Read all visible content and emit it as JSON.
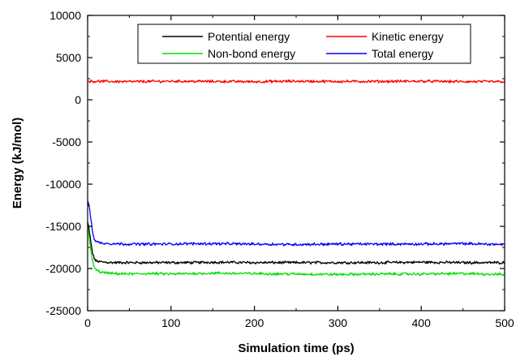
{
  "chart_data": {
    "type": "line",
    "title": "",
    "xlabel": "Simulation time (ps)",
    "ylabel": "Energy (kJ/mol)",
    "xlim": [
      0,
      500
    ],
    "ylim": [
      -25000,
      10000
    ],
    "x_ticks": [
      0,
      100,
      200,
      300,
      400,
      500
    ],
    "y_ticks": [
      10000,
      5000,
      0,
      -5000,
      -10000,
      -15000,
      -20000,
      -25000
    ],
    "grid": false,
    "legend_position": "top-right",
    "series": [
      {
        "name": "Potential energy",
        "color": "#000000",
        "x": [
          0,
          2,
          4,
          6,
          8,
          10,
          15,
          20,
          30,
          50,
          75,
          100,
          125,
          150,
          200,
          250,
          300,
          350,
          400,
          450,
          500
        ],
        "y": [
          -14500,
          -15500,
          -17000,
          -18200,
          -18800,
          -19100,
          -19200,
          -19250,
          -19300,
          -19300,
          -19300,
          -19300,
          -19300,
          -19250,
          -19300,
          -19300,
          -19300,
          -19300,
          -19250,
          -19300,
          -19300
        ]
      },
      {
        "name": "Kinetic energy",
        "color": "#ff0000",
        "x": [
          0,
          50,
          100,
          150,
          200,
          250,
          300,
          350,
          400,
          450,
          500
        ],
        "y": [
          2200,
          2150,
          2200,
          2180,
          2150,
          2200,
          2170,
          2180,
          2200,
          2150,
          2150
        ]
      },
      {
        "name": "Non-bond energy",
        "color": "#00e000",
        "x": [
          0,
          2,
          4,
          6,
          8,
          10,
          15,
          20,
          30,
          50,
          75,
          100,
          125,
          150,
          200,
          250,
          300,
          350,
          400,
          450,
          500
        ],
        "y": [
          -15000,
          -16500,
          -18000,
          -19200,
          -19800,
          -20200,
          -20400,
          -20500,
          -20600,
          -20650,
          -20600,
          -20650,
          -20600,
          -20550,
          -20600,
          -20650,
          -20700,
          -20650,
          -20650,
          -20600,
          -20700
        ]
      },
      {
        "name": "Total energy",
        "color": "#0000ff",
        "x": [
          0,
          2,
          4,
          6,
          8,
          10,
          15,
          20,
          30,
          50,
          75,
          100,
          125,
          150,
          200,
          250,
          300,
          350,
          400,
          450,
          500
        ],
        "y": [
          -12000,
          -12700,
          -14200,
          -15700,
          -16500,
          -16800,
          -16950,
          -17000,
          -17050,
          -17100,
          -17100,
          -17100,
          -17050,
          -17050,
          -17100,
          -17150,
          -17100,
          -17100,
          -17100,
          -17050,
          -17150
        ]
      }
    ]
  }
}
